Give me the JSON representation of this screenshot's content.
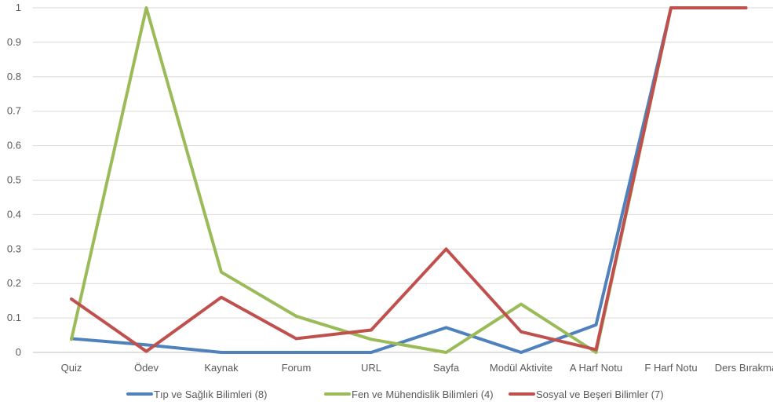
{
  "chart_data": {
    "type": "line",
    "categories": [
      "Quiz",
      "Ödev",
      "Kaynak",
      "Forum",
      "URL",
      "Sayfa",
      "Modül Aktivite",
      "A Harf Notu",
      "F Harf Notu",
      "Ders Bırakma"
    ],
    "y_ticks": [
      "0",
      "0.1",
      "0.2",
      "0.3",
      "0.4",
      "0.5",
      "0.6",
      "0.7",
      "0.8",
      "0.9",
      "1"
    ],
    "ylim": [
      0,
      1
    ],
    "grid": true,
    "legend_position": "bottom",
    "series": [
      {
        "name": "Tıp ve Sağlık Bilimleri (8)",
        "color": "#4f81bd",
        "values": [
          0.04,
          0.022,
          0,
          0,
          0,
          0.072,
          0,
          0.08,
          1,
          1
        ]
      },
      {
        "name": "Fen ve Mühendislik Bilimleri (4)",
        "color": "#9bbb59",
        "values": [
          0.038,
          1,
          0.233,
          0.105,
          0.038,
          0,
          0.14,
          0,
          1,
          1
        ]
      },
      {
        "name": "Sosyal ve Beşeri Bilimler (7)",
        "color": "#c0504d",
        "values": [
          0.155,
          0.003,
          0.16,
          0.04,
          0.065,
          0.3,
          0.06,
          0.008,
          1,
          1
        ]
      }
    ]
  }
}
